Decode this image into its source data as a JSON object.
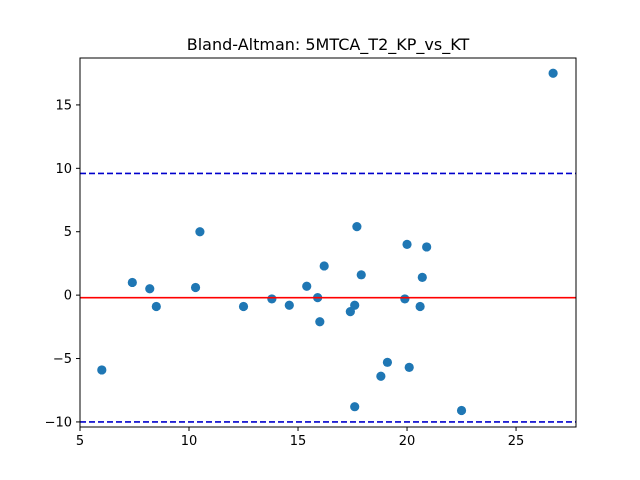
{
  "chart_data": {
    "type": "scatter",
    "title": "Bland-Altman: 5MTCA_T2_KP_vs_KT",
    "xlabel": "",
    "ylabel": "",
    "xlim": [
      5,
      27.75
    ],
    "ylim": [
      -10.4,
      18.7
    ],
    "xticks": [
      5,
      10,
      15,
      20,
      25
    ],
    "yticks": [
      -10,
      -5,
      0,
      5,
      10,
      15
    ],
    "grid": false,
    "points": [
      {
        "x": 6.0,
        "y": -5.9
      },
      {
        "x": 7.4,
        "y": 1.0
      },
      {
        "x": 8.2,
        "y": 0.5
      },
      {
        "x": 8.5,
        "y": -0.9
      },
      {
        "x": 10.3,
        "y": 0.6
      },
      {
        "x": 10.5,
        "y": 5.0
      },
      {
        "x": 12.5,
        "y": -0.9
      },
      {
        "x": 13.8,
        "y": -0.3
      },
      {
        "x": 14.6,
        "y": -0.8
      },
      {
        "x": 15.4,
        "y": 0.7
      },
      {
        "x": 15.9,
        "y": -0.2
      },
      {
        "x": 16.0,
        "y": -2.1
      },
      {
        "x": 16.2,
        "y": 2.3
      },
      {
        "x": 17.4,
        "y": -1.3
      },
      {
        "x": 17.6,
        "y": -0.8
      },
      {
        "x": 17.7,
        "y": 5.4
      },
      {
        "x": 17.9,
        "y": 1.6
      },
      {
        "x": 17.6,
        "y": -8.8
      },
      {
        "x": 18.8,
        "y": -6.4
      },
      {
        "x": 19.1,
        "y": -5.3
      },
      {
        "x": 19.9,
        "y": -0.3
      },
      {
        "x": 20.0,
        "y": 4.0
      },
      {
        "x": 20.1,
        "y": -5.7
      },
      {
        "x": 20.6,
        "y": -0.9
      },
      {
        "x": 20.7,
        "y": 1.4
      },
      {
        "x": 20.9,
        "y": 3.8
      },
      {
        "x": 22.5,
        "y": -9.1
      },
      {
        "x": 26.7,
        "y": 17.5
      }
    ],
    "mean_line": {
      "y": -0.2,
      "color": "#ff0000"
    },
    "limits_of_agreement": {
      "upper": 9.6,
      "lower": -10.0,
      "color": "#0000cc"
    },
    "marker_color": "#1f77b4"
  }
}
